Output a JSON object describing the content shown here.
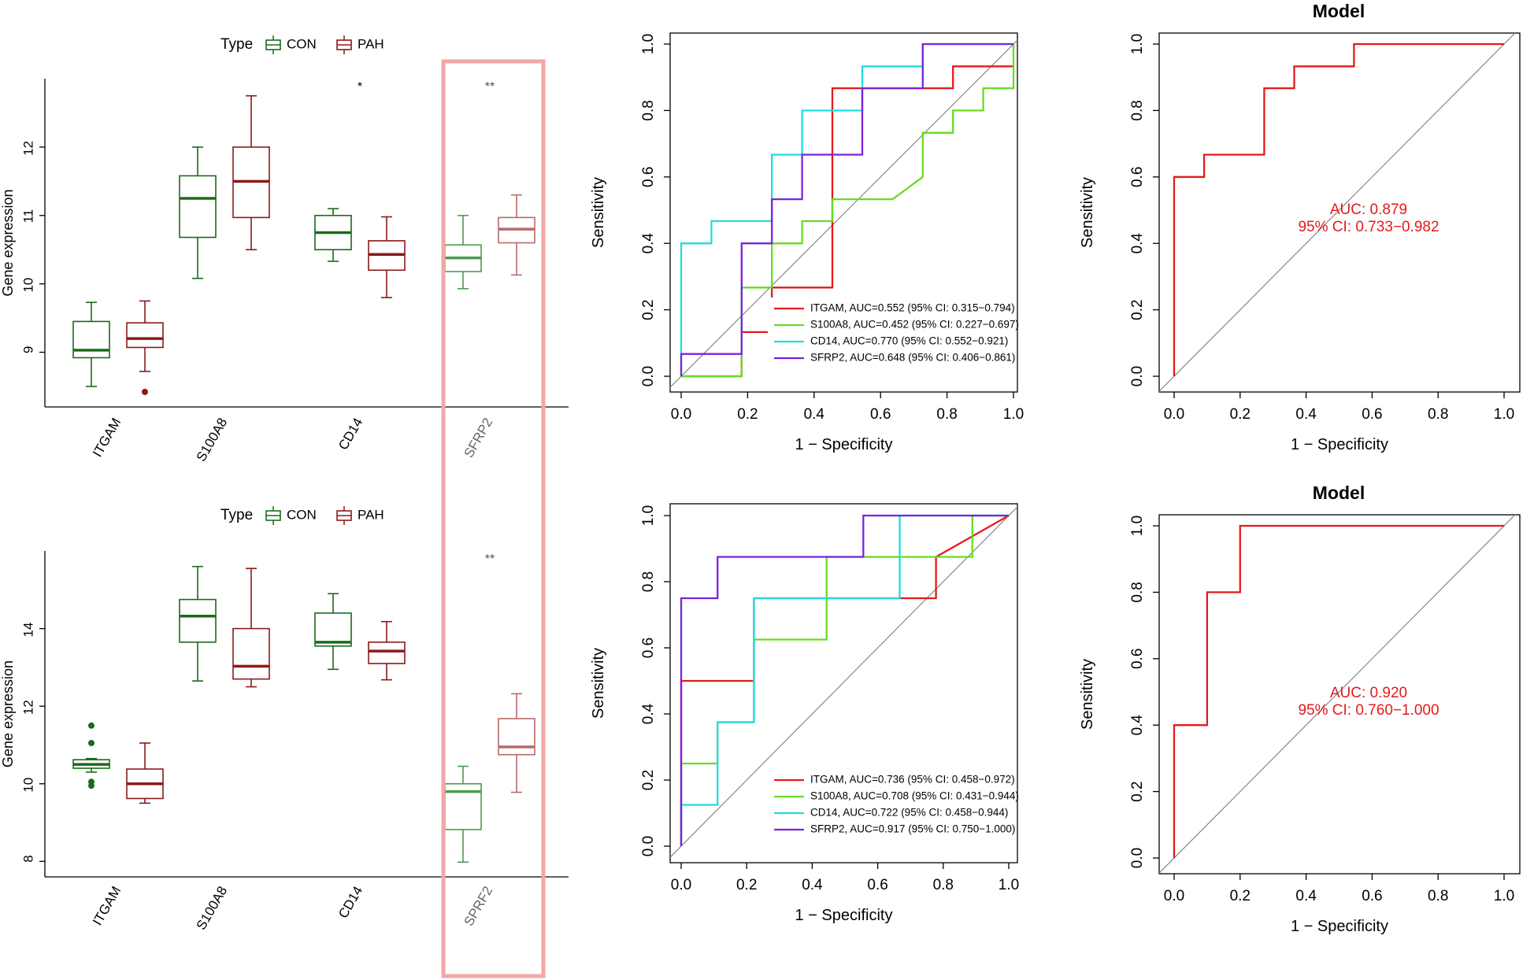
{
  "figure": {
    "highlight_color": "#f4a6a6"
  },
  "chart_data": [
    {
      "id": "box_top",
      "type": "box",
      "legend_title": "Type",
      "legend": [
        {
          "name": "CON",
          "color": "#1a6b1a"
        },
        {
          "name": "PAH",
          "color": "#8b1a1a"
        }
      ],
      "ylabel": "Gene expression",
      "ylim": [
        8.2,
        13.0
      ],
      "yticks": [
        9,
        10,
        11,
        12
      ],
      "categories": [
        "ITGAM",
        "S100A8",
        "CD14",
        "SFRP2"
      ],
      "significance": [
        "",
        "",
        "*",
        "**"
      ],
      "groups": [
        {
          "category": "ITGAM",
          "series": "CON",
          "min": 8.5,
          "q1": 8.92,
          "median": 9.03,
          "q3": 9.45,
          "max": 9.73,
          "outliers": []
        },
        {
          "category": "ITGAM",
          "series": "PAH",
          "min": 8.72,
          "q1": 9.07,
          "median": 9.2,
          "q3": 9.43,
          "max": 9.75,
          "outliers": [
            8.42
          ]
        },
        {
          "category": "S100A8",
          "series": "CON",
          "min": 10.08,
          "q1": 10.68,
          "median": 11.25,
          "q3": 11.58,
          "max": 12.0,
          "outliers": []
        },
        {
          "category": "S100A8",
          "series": "PAH",
          "min": 10.5,
          "q1": 10.97,
          "median": 11.5,
          "q3": 12.0,
          "max": 12.75,
          "outliers": []
        },
        {
          "category": "CD14",
          "series": "CON",
          "min": 10.33,
          "q1": 10.5,
          "median": 10.75,
          "q3": 11.0,
          "max": 11.1,
          "outliers": []
        },
        {
          "category": "CD14",
          "series": "PAH",
          "min": 9.8,
          "q1": 10.2,
          "median": 10.43,
          "q3": 10.63,
          "max": 10.98,
          "outliers": []
        },
        {
          "category": "SFRP2",
          "series": "CON",
          "min": 9.93,
          "q1": 10.18,
          "median": 10.38,
          "q3": 10.57,
          "max": 11.0,
          "outliers": []
        },
        {
          "category": "SFRP2",
          "series": "PAH",
          "min": 10.13,
          "q1": 10.6,
          "median": 10.8,
          "q3": 10.97,
          "max": 11.3,
          "outliers": []
        }
      ]
    },
    {
      "id": "box_bottom",
      "type": "box",
      "legend_title": "Type",
      "legend": [
        {
          "name": "CON",
          "color": "#1a6b1a"
        },
        {
          "name": "PAH",
          "color": "#8b1a1a"
        }
      ],
      "ylabel": "Gene expression",
      "ylim": [
        7.6,
        16.0
      ],
      "yticks": [
        8,
        10,
        12,
        14
      ],
      "categories": [
        "ITGAM",
        "S100A8",
        "CD14",
        "SPRF2"
      ],
      "significance": [
        "",
        "",
        "",
        "**"
      ],
      "groups": [
        {
          "category": "ITGAM",
          "series": "CON",
          "min": 10.3,
          "q1": 10.4,
          "median": 10.5,
          "q3": 10.62,
          "max": 10.65,
          "outliers": [
            11.5,
            11.05,
            10.05,
            9.95
          ]
        },
        {
          "category": "ITGAM",
          "series": "PAH",
          "min": 9.5,
          "q1": 9.62,
          "median": 10.0,
          "q3": 10.38,
          "max": 11.05,
          "outliers": []
        },
        {
          "category": "S100A8",
          "series": "CON",
          "min": 12.65,
          "q1": 13.65,
          "median": 14.32,
          "q3": 14.75,
          "max": 15.6,
          "outliers": []
        },
        {
          "category": "S100A8",
          "series": "PAH",
          "min": 12.5,
          "q1": 12.7,
          "median": 13.03,
          "q3": 14.0,
          "max": 15.55,
          "outliers": []
        },
        {
          "category": "CD14",
          "series": "CON",
          "min": 12.95,
          "q1": 13.55,
          "median": 13.65,
          "q3": 14.4,
          "max": 14.9,
          "outliers": []
        },
        {
          "category": "CD14",
          "series": "PAH",
          "min": 12.68,
          "q1": 13.1,
          "median": 13.42,
          "q3": 13.65,
          "max": 14.18,
          "outliers": []
        },
        {
          "category": "SPRF2",
          "series": "CON",
          "min": 7.98,
          "q1": 8.82,
          "median": 9.8,
          "q3": 10.0,
          "max": 10.45,
          "outliers": []
        },
        {
          "category": "SPRF2",
          "series": "PAH",
          "min": 9.78,
          "q1": 10.75,
          "median": 10.95,
          "q3": 11.68,
          "max": 12.32,
          "outliers": []
        }
      ]
    },
    {
      "id": "roc_top",
      "type": "line",
      "title": "",
      "xlabel": "1 − Specificity",
      "ylabel": "Sensitivity",
      "xlim": [
        0,
        1
      ],
      "ylim": [
        0,
        1
      ],
      "ticks": [
        "0.0",
        "0.2",
        "0.4",
        "0.6",
        "0.8",
        "1.0"
      ],
      "series": [
        {
          "name": "ITGAM, AUC=0.552 (95% CI: 0.315−0.794)",
          "color": "#e41a1c",
          "x": [
            0,
            0.182,
            0.182,
            0.273,
            0.273,
            0.455,
            0.455,
            0.455,
            0.455,
            0.818,
            0.818,
            1.0
          ],
          "y": [
            0,
            0.0,
            0.133,
            0.133,
            0.267,
            0.267,
            0.8,
            0.467,
            0.867,
            0.867,
            0.933,
            0.933
          ]
        },
        {
          "name": "S100A8, AUC=0.452 (95% CI: 0.227−0.697)",
          "color": "#66dd22",
          "x": [
            0,
            0.182,
            0.182,
            0.273,
            0.273,
            0.364,
            0.364,
            0.455,
            0.455,
            0.636,
            0.727,
            0.727,
            0.818,
            0.818,
            0.909,
            0.909,
            1.0,
            1.0
          ],
          "y": [
            0,
            0.0,
            0.267,
            0.267,
            0.4,
            0.4,
            0.467,
            0.467,
            0.533,
            0.533,
            0.6,
            0.733,
            0.733,
            0.8,
            0.8,
            0.867,
            0.867,
            1.0
          ]
        },
        {
          "name": "CD14, AUC=0.770 (95% CI: 0.552−0.921)",
          "color": "#22dddd",
          "x": [
            0,
            0,
            0.091,
            0.091,
            0.273,
            0.273,
            0.364,
            0.364,
            0.545,
            0.545,
            0.727,
            0.727,
            1.0
          ],
          "y": [
            0,
            0.4,
            0.4,
            0.467,
            0.467,
            0.667,
            0.667,
            0.8,
            0.8,
            0.933,
            0.933,
            1.0,
            1.0
          ]
        },
        {
          "name": "SFRP2, AUC=0.648 (95% CI: 0.406−0.861)",
          "color": "#7b22dd",
          "x": [
            0,
            0,
            0.182,
            0.182,
            0.273,
            0.273,
            0.364,
            0.364,
            0.545,
            0.545,
            0.727,
            0.727,
            1.0
          ],
          "y": [
            0,
            0.067,
            0.067,
            0.4,
            0.4,
            0.533,
            0.533,
            0.667,
            0.667,
            0.867,
            0.867,
            1.0,
            1.0
          ]
        }
      ]
    },
    {
      "id": "roc_bottom",
      "type": "line",
      "title": "",
      "xlabel": "1 − Specificity",
      "ylabel": "Sensitivity",
      "xlim": [
        0,
        1
      ],
      "ylim": [
        0,
        1
      ],
      "ticks": [
        "0.0",
        "0.2",
        "0.4",
        "0.6",
        "0.8",
        "1.0"
      ],
      "series": [
        {
          "name": "ITGAM, AUC=0.736 (95% CI: 0.458−0.972)",
          "color": "#e41a1c",
          "x": [
            0,
            0,
            0.222,
            0.222,
            0.667,
            0.667,
            0.778,
            0.778,
            1.0
          ],
          "y": [
            0,
            0.5,
            0.5,
            0.75,
            0.75,
            0.75,
            0.75,
            0.875,
            1.0
          ]
        },
        {
          "name": "S100A8, AUC=0.708 (95% CI: 0.431−0.944)",
          "color": "#66dd22",
          "x": [
            0,
            0,
            0.111,
            0.111,
            0.222,
            0.222,
            0.444,
            0.444,
            0.556,
            0.556,
            0.889,
            0.889,
            1.0
          ],
          "y": [
            0,
            0.25,
            0.25,
            0.375,
            0.375,
            0.625,
            0.625,
            0.875,
            0.875,
            0.875,
            0.875,
            1.0,
            1.0
          ]
        },
        {
          "name": "CD14, AUC=0.722 (95% CI: 0.458−0.944)",
          "color": "#22dddd",
          "x": [
            0,
            0,
            0.111,
            0.111,
            0.222,
            0.222,
            0.667,
            0.667,
            1.0
          ],
          "y": [
            0,
            0.125,
            0.125,
            0.375,
            0.375,
            0.75,
            0.75,
            1.0,
            1.0
          ]
        },
        {
          "name": "SFRP2, AUC=0.917 (95% CI: 0.750−1.000)",
          "color": "#7b22dd",
          "x": [
            0,
            0,
            0.111,
            0.111,
            0.556,
            0.556,
            1.0
          ],
          "y": [
            0,
            0.75,
            0.75,
            0.875,
            0.875,
            1.0,
            1.0
          ]
        }
      ]
    },
    {
      "id": "model_top",
      "type": "line",
      "title": "Model",
      "xlabel": "1 − Specificity",
      "ylabel": "Sensitivity",
      "xlim": [
        0,
        1
      ],
      "ylim": [
        0,
        1
      ],
      "ticks": [
        "0.0",
        "0.2",
        "0.4",
        "0.6",
        "0.8",
        "1.0"
      ],
      "auc_label": "AUC: 0.879",
      "ci_label": "95% CI: 0.733−0.982",
      "series": [
        {
          "name": "Model",
          "color": "#e41a1c",
          "x": [
            0,
            0,
            0.091,
            0.091,
            0.273,
            0.273,
            0.364,
            0.364,
            0.545,
            0.545,
            1.0
          ],
          "y": [
            0,
            0.6,
            0.6,
            0.667,
            0.667,
            0.867,
            0.867,
            0.933,
            0.933,
            1.0,
            1.0
          ]
        }
      ]
    },
    {
      "id": "model_bottom",
      "type": "line",
      "title": "Model",
      "xlabel": "1 − Specificity",
      "ylabel": "Sensitivity",
      "xlim": [
        0,
        1
      ],
      "ylim": [
        0,
        1
      ],
      "ticks": [
        "0.0",
        "0.2",
        "0.4",
        "0.6",
        "0.8",
        "1.0"
      ],
      "auc_label": "AUC: 0.920",
      "ci_label": "95% CI: 0.760−1.000",
      "series": [
        {
          "name": "Model",
          "color": "#e41a1c",
          "x": [
            0,
            0,
            0.1,
            0.1,
            0.2,
            0.2,
            1.0
          ],
          "y": [
            0,
            0.4,
            0.4,
            0.8,
            0.8,
            1.0,
            1.0
          ]
        }
      ]
    }
  ]
}
